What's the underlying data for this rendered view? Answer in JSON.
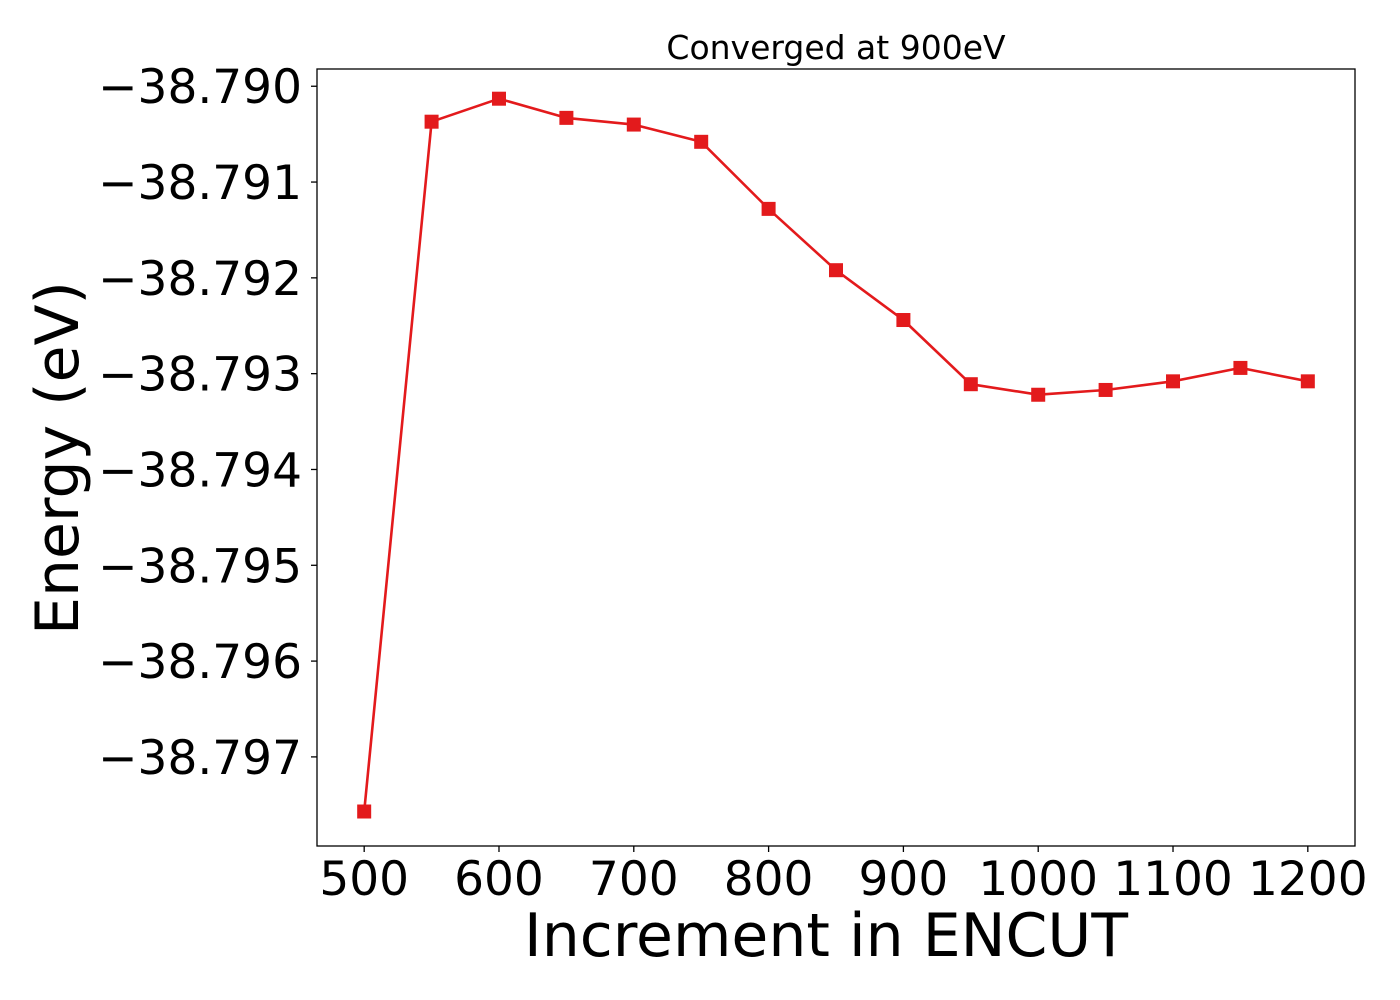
{
  "chart_data": {
    "type": "line",
    "title": "Converged at 900eV",
    "xlabel": "Increment in ENCUT",
    "ylabel": "Energy (eV)",
    "x": [
      500,
      550,
      600,
      650,
      700,
      750,
      800,
      850,
      900,
      950,
      1000,
      1050,
      1100,
      1150,
      1200
    ],
    "series": [
      {
        "values": [
          -38.79757,
          -38.79037,
          -38.79013,
          -38.79033,
          -38.7904,
          -38.79058,
          -38.79128,
          -38.79192,
          -38.79244,
          -38.79311,
          -38.79322,
          -38.79317,
          -38.79308,
          -38.79294,
          -38.79308
        ],
        "color": "#e31a1c",
        "marker": "square"
      }
    ],
    "xlim": [
      465,
      1235
    ],
    "ylim": [
      -38.79793,
      -38.78982
    ],
    "xticks": [
      500,
      600,
      700,
      800,
      900,
      1000,
      1100,
      1200
    ],
    "xtick_labels": [
      "500",
      "600",
      "700",
      "800",
      "900",
      "1000",
      "1100",
      "1200"
    ],
    "yticks": [
      -38.79,
      -38.791,
      -38.792,
      -38.793,
      -38.794,
      -38.795,
      -38.796,
      -38.797
    ],
    "ytick_labels": [
      "−38.790",
      "−38.791",
      "−38.792",
      "−38.793",
      "−38.794",
      "−38.795",
      "−38.796",
      "−38.797"
    ],
    "grid": false,
    "legend": false
  }
}
